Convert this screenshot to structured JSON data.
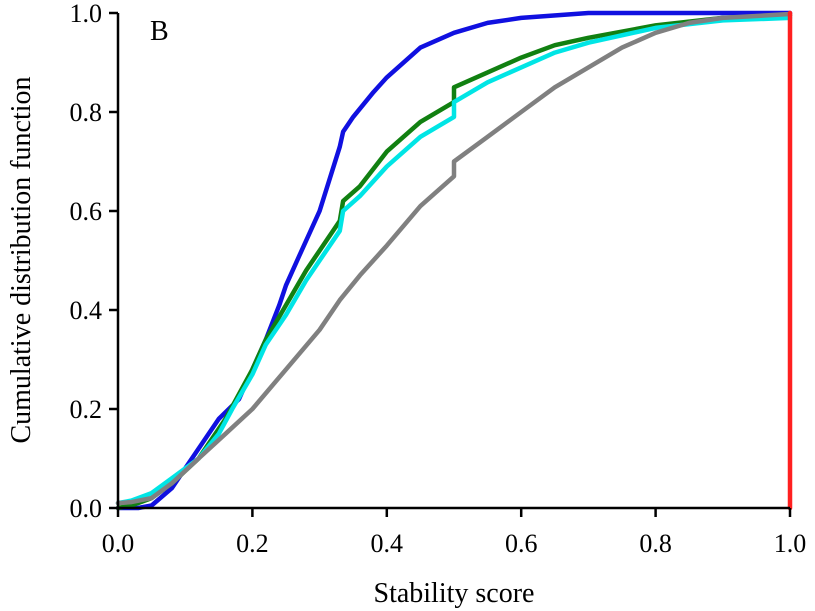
{
  "chart_data": {
    "type": "line",
    "panel_label": "B",
    "xlabel": "Stability score",
    "ylabel": "Cumulative distribution function",
    "xlim": [
      0.0,
      1.0
    ],
    "ylim": [
      0.0,
      1.0
    ],
    "x_ticks": [
      "0.0",
      "0.2",
      "0.4",
      "0.6",
      "0.8",
      "1.0"
    ],
    "y_ticks": [
      "0.0",
      "0.2",
      "0.4",
      "0.6",
      "0.8",
      "1.0"
    ],
    "legend": "none",
    "grid": false,
    "series": [
      {
        "name": "blue",
        "color": "#1010e0",
        "points": [
          [
            0,
            0
          ],
          [
            0.03,
            0.0
          ],
          [
            0.05,
            0.005
          ],
          [
            0.08,
            0.04
          ],
          [
            0.1,
            0.08
          ],
          [
            0.12,
            0.12
          ],
          [
            0.15,
            0.18
          ],
          [
            0.18,
            0.22
          ],
          [
            0.2,
            0.28
          ],
          [
            0.22,
            0.34
          ],
          [
            0.24,
            0.41
          ],
          [
            0.25,
            0.45
          ],
          [
            0.27,
            0.51
          ],
          [
            0.3,
            0.6
          ],
          [
            0.33,
            0.73
          ],
          [
            0.335,
            0.76
          ],
          [
            0.35,
            0.79
          ],
          [
            0.38,
            0.84
          ],
          [
            0.4,
            0.87
          ],
          [
            0.45,
            0.93
          ],
          [
            0.5,
            0.96
          ],
          [
            0.55,
            0.98
          ],
          [
            0.6,
            0.99
          ],
          [
            0.7,
            1.0
          ],
          [
            0.8,
            1.0
          ],
          [
            1.0,
            1.0
          ]
        ]
      },
      {
        "name": "green",
        "color": "#118011",
        "points": [
          [
            0,
            0.0
          ],
          [
            0.02,
            0.005
          ],
          [
            0.05,
            0.02
          ],
          [
            0.08,
            0.05
          ],
          [
            0.12,
            0.1
          ],
          [
            0.16,
            0.18
          ],
          [
            0.2,
            0.28
          ],
          [
            0.22,
            0.34
          ],
          [
            0.25,
            0.41
          ],
          [
            0.28,
            0.48
          ],
          [
            0.3,
            0.52
          ],
          [
            0.33,
            0.58
          ],
          [
            0.335,
            0.62
          ],
          [
            0.36,
            0.65
          ],
          [
            0.4,
            0.72
          ],
          [
            0.45,
            0.78
          ],
          [
            0.5,
            0.82
          ],
          [
            0.5,
            0.85
          ],
          [
            0.55,
            0.88
          ],
          [
            0.6,
            0.91
          ],
          [
            0.65,
            0.935
          ],
          [
            0.7,
            0.95
          ],
          [
            0.8,
            0.975
          ],
          [
            0.9,
            0.99
          ],
          [
            1.0,
            0.995
          ]
        ]
      },
      {
        "name": "cyan",
        "color": "#00e5e5",
        "points": [
          [
            0,
            0.01
          ],
          [
            0.02,
            0.015
          ],
          [
            0.05,
            0.03
          ],
          [
            0.08,
            0.06
          ],
          [
            0.12,
            0.1
          ],
          [
            0.15,
            0.15
          ],
          [
            0.17,
            0.2
          ],
          [
            0.2,
            0.27
          ],
          [
            0.22,
            0.33
          ],
          [
            0.25,
            0.39
          ],
          [
            0.28,
            0.46
          ],
          [
            0.3,
            0.5
          ],
          [
            0.33,
            0.56
          ],
          [
            0.335,
            0.6
          ],
          [
            0.36,
            0.63
          ],
          [
            0.4,
            0.69
          ],
          [
            0.45,
            0.75
          ],
          [
            0.5,
            0.79
          ],
          [
            0.5,
            0.82
          ],
          [
            0.55,
            0.86
          ],
          [
            0.6,
            0.89
          ],
          [
            0.65,
            0.92
          ],
          [
            0.7,
            0.94
          ],
          [
            0.8,
            0.97
          ],
          [
            0.9,
            0.985
          ],
          [
            1.0,
            0.99
          ]
        ]
      },
      {
        "name": "gray",
        "color": "#808080",
        "points": [
          [
            0,
            0.01
          ],
          [
            0.02,
            0.012
          ],
          [
            0.05,
            0.02
          ],
          [
            0.08,
            0.05
          ],
          [
            0.12,
            0.1
          ],
          [
            0.16,
            0.15
          ],
          [
            0.2,
            0.2
          ],
          [
            0.25,
            0.28
          ],
          [
            0.3,
            0.36
          ],
          [
            0.33,
            0.42
          ],
          [
            0.36,
            0.47
          ],
          [
            0.4,
            0.53
          ],
          [
            0.45,
            0.61
          ],
          [
            0.5,
            0.67
          ],
          [
            0.5,
            0.7
          ],
          [
            0.55,
            0.75
          ],
          [
            0.6,
            0.8
          ],
          [
            0.65,
            0.85
          ],
          [
            0.7,
            0.89
          ],
          [
            0.75,
            0.93
          ],
          [
            0.8,
            0.96
          ],
          [
            0.85,
            0.98
          ],
          [
            0.9,
            0.99
          ],
          [
            1.0,
            0.998
          ]
        ]
      },
      {
        "name": "red",
        "color": "#ff2020",
        "points": [
          [
            1.0,
            0.0
          ],
          [
            1.0,
            1.0
          ]
        ]
      }
    ]
  }
}
